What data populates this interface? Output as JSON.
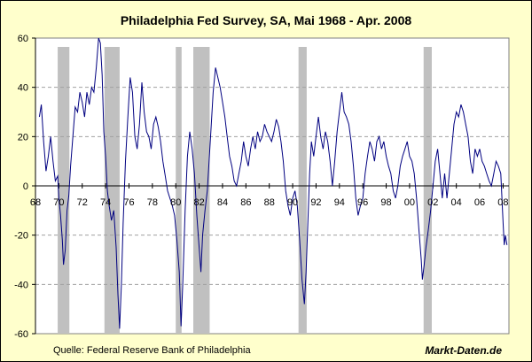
{
  "chart_data": {
    "type": "line",
    "title": "Philadelphia Fed Survey, SA, Mai 1968 - Apr. 2008",
    "xlabel": "",
    "ylabel": "",
    "xlim": [
      1968.0,
      2008.5
    ],
    "ylim": [
      -60,
      60
    ],
    "y_ticks": [
      60,
      40,
      20,
      0,
      -20,
      -40,
      -60
    ],
    "x_ticks": [
      {
        "year": 1968,
        "label": "68"
      },
      {
        "year": 1970,
        "label": "70"
      },
      {
        "year": 1972,
        "label": "72"
      },
      {
        "year": 1974,
        "label": "74"
      },
      {
        "year": 1976,
        "label": "76"
      },
      {
        "year": 1978,
        "label": "78"
      },
      {
        "year": 1980,
        "label": "80"
      },
      {
        "year": 1982,
        "label": "82"
      },
      {
        "year": 1984,
        "label": "84"
      },
      {
        "year": 1986,
        "label": "86"
      },
      {
        "year": 1988,
        "label": "88"
      },
      {
        "year": 1990,
        "label": "90"
      },
      {
        "year": 1992,
        "label": "92"
      },
      {
        "year": 1994,
        "label": "94"
      },
      {
        "year": 1996,
        "label": "96"
      },
      {
        "year": 1998,
        "label": "98"
      },
      {
        "year": 2000,
        "label": "00"
      },
      {
        "year": 2002,
        "label": "02"
      },
      {
        "year": 2004,
        "label": "04"
      },
      {
        "year": 2006,
        "label": "06"
      },
      {
        "year": 2008,
        "label": "08"
      }
    ],
    "grid": "horizontal dashed",
    "recessions": [
      {
        "start": 1969.9,
        "end": 1970.9
      },
      {
        "start": 1973.9,
        "end": 1975.2
      },
      {
        "start": 1980.0,
        "end": 1980.5
      },
      {
        "start": 1981.5,
        "end": 1982.9
      },
      {
        "start": 1990.5,
        "end": 1991.2
      },
      {
        "start": 2001.2,
        "end": 2001.9
      }
    ],
    "series": [
      {
        "name": "Philadelphia Fed Survey",
        "color": "#000080",
        "points": [
          [
            1968.33,
            28
          ],
          [
            1968.5,
            33
          ],
          [
            1968.7,
            18
          ],
          [
            1968.9,
            6
          ],
          [
            1969.1,
            12
          ],
          [
            1969.3,
            20
          ],
          [
            1969.5,
            10
          ],
          [
            1969.7,
            2
          ],
          [
            1969.9,
            4
          ],
          [
            1970.0,
            -5
          ],
          [
            1970.15,
            -12
          ],
          [
            1970.3,
            -22
          ],
          [
            1970.4,
            -32
          ],
          [
            1970.55,
            -26
          ],
          [
            1970.7,
            -10
          ],
          [
            1970.85,
            -4
          ],
          [
            1971.0,
            8
          ],
          [
            1971.2,
            20
          ],
          [
            1971.4,
            32
          ],
          [
            1971.6,
            30
          ],
          [
            1971.8,
            38
          ],
          [
            1972.0,
            34
          ],
          [
            1972.2,
            28
          ],
          [
            1972.4,
            38
          ],
          [
            1972.6,
            33
          ],
          [
            1972.8,
            40
          ],
          [
            1973.0,
            38
          ],
          [
            1973.2,
            48
          ],
          [
            1973.4,
            60
          ],
          [
            1973.55,
            58
          ],
          [
            1973.7,
            45
          ],
          [
            1973.85,
            22
          ],
          [
            1974.0,
            12
          ],
          [
            1974.15,
            -2
          ],
          [
            1974.3,
            -8
          ],
          [
            1974.5,
            -14
          ],
          [
            1974.7,
            -10
          ],
          [
            1974.9,
            -25
          ],
          [
            1975.05,
            -44
          ],
          [
            1975.2,
            -58
          ],
          [
            1975.35,
            -40
          ],
          [
            1975.5,
            -15
          ],
          [
            1975.7,
            10
          ],
          [
            1975.9,
            28
          ],
          [
            1976.1,
            44
          ],
          [
            1976.3,
            38
          ],
          [
            1976.5,
            20
          ],
          [
            1976.7,
            15
          ],
          [
            1976.9,
            25
          ],
          [
            1977.1,
            42
          ],
          [
            1977.3,
            30
          ],
          [
            1977.5,
            22
          ],
          [
            1977.7,
            20
          ],
          [
            1977.9,
            15
          ],
          [
            1978.1,
            25
          ],
          [
            1978.3,
            28
          ],
          [
            1978.5,
            24
          ],
          [
            1978.7,
            18
          ],
          [
            1978.9,
            10
          ],
          [
            1979.1,
            4
          ],
          [
            1979.3,
            -2
          ],
          [
            1979.5,
            -5
          ],
          [
            1979.7,
            -8
          ],
          [
            1979.9,
            -12
          ],
          [
            1980.1,
            -22
          ],
          [
            1980.3,
            -35
          ],
          [
            1980.45,
            -57
          ],
          [
            1980.6,
            -40
          ],
          [
            1980.8,
            -10
          ],
          [
            1981.0,
            12
          ],
          [
            1981.2,
            22
          ],
          [
            1981.4,
            15
          ],
          [
            1981.6,
            5
          ],
          [
            1981.8,
            -12
          ],
          [
            1982.0,
            -25
          ],
          [
            1982.15,
            -35
          ],
          [
            1982.3,
            -20
          ],
          [
            1982.5,
            -10
          ],
          [
            1982.7,
            -2
          ],
          [
            1982.85,
            10
          ],
          [
            1983.0,
            22
          ],
          [
            1983.2,
            38
          ],
          [
            1983.4,
            48
          ],
          [
            1983.6,
            44
          ],
          [
            1983.8,
            40
          ],
          [
            1984.0,
            34
          ],
          [
            1984.2,
            28
          ],
          [
            1984.4,
            20
          ],
          [
            1984.6,
            12
          ],
          [
            1984.8,
            8
          ],
          [
            1985.0,
            2
          ],
          [
            1985.2,
            0
          ],
          [
            1985.4,
            5
          ],
          [
            1985.6,
            10
          ],
          [
            1985.8,
            18
          ],
          [
            1986.0,
            12
          ],
          [
            1986.2,
            8
          ],
          [
            1986.4,
            15
          ],
          [
            1986.6,
            20
          ],
          [
            1986.8,
            15
          ],
          [
            1987.0,
            22
          ],
          [
            1987.2,
            18
          ],
          [
            1987.4,
            20
          ],
          [
            1987.6,
            25
          ],
          [
            1987.8,
            22
          ],
          [
            1988.0,
            20
          ],
          [
            1988.2,
            18
          ],
          [
            1988.4,
            22
          ],
          [
            1988.6,
            27
          ],
          [
            1988.8,
            24
          ],
          [
            1989.0,
            18
          ],
          [
            1989.2,
            10
          ],
          [
            1989.4,
            -2
          ],
          [
            1989.6,
            -8
          ],
          [
            1989.8,
            -12
          ],
          [
            1990.0,
            -5
          ],
          [
            1990.2,
            -2
          ],
          [
            1990.4,
            -8
          ],
          [
            1990.6,
            -22
          ],
          [
            1990.8,
            -38
          ],
          [
            1991.0,
            -48
          ],
          [
            1991.15,
            -35
          ],
          [
            1991.3,
            -15
          ],
          [
            1991.45,
            5
          ],
          [
            1991.6,
            18
          ],
          [
            1991.8,
            12
          ],
          [
            1992.0,
            20
          ],
          [
            1992.2,
            28
          ],
          [
            1992.4,
            20
          ],
          [
            1992.6,
            15
          ],
          [
            1992.8,
            22
          ],
          [
            1993.0,
            18
          ],
          [
            1993.2,
            10
          ],
          [
            1993.4,
            0
          ],
          [
            1993.6,
            10
          ],
          [
            1993.8,
            22
          ],
          [
            1994.0,
            30
          ],
          [
            1994.2,
            38
          ],
          [
            1994.4,
            30
          ],
          [
            1994.6,
            28
          ],
          [
            1994.8,
            25
          ],
          [
            1995.0,
            18
          ],
          [
            1995.2,
            8
          ],
          [
            1995.4,
            -5
          ],
          [
            1995.6,
            -12
          ],
          [
            1995.8,
            -8
          ],
          [
            1996.0,
            -5
          ],
          [
            1996.2,
            5
          ],
          [
            1996.4,
            12
          ],
          [
            1996.6,
            18
          ],
          [
            1996.8,
            15
          ],
          [
            1997.0,
            10
          ],
          [
            1997.2,
            18
          ],
          [
            1997.4,
            20
          ],
          [
            1997.6,
            15
          ],
          [
            1997.8,
            18
          ],
          [
            1998.0,
            12
          ],
          [
            1998.2,
            8
          ],
          [
            1998.4,
            5
          ],
          [
            1998.6,
            -2
          ],
          [
            1998.8,
            -5
          ],
          [
            1999.0,
            0
          ],
          [
            1999.2,
            8
          ],
          [
            1999.4,
            12
          ],
          [
            1999.6,
            15
          ],
          [
            1999.8,
            18
          ],
          [
            2000.0,
            12
          ],
          [
            2000.2,
            10
          ],
          [
            2000.4,
            5
          ],
          [
            2000.6,
            -5
          ],
          [
            2000.8,
            -18
          ],
          [
            2001.0,
            -30
          ],
          [
            2001.1,
            -38
          ],
          [
            2001.25,
            -32
          ],
          [
            2001.4,
            -25
          ],
          [
            2001.6,
            -18
          ],
          [
            2001.8,
            -10
          ],
          [
            2002.0,
            0
          ],
          [
            2002.2,
            10
          ],
          [
            2002.4,
            15
          ],
          [
            2002.6,
            5
          ],
          [
            2002.8,
            -5
          ],
          [
            2003.0,
            5
          ],
          [
            2003.2,
            -5
          ],
          [
            2003.4,
            5
          ],
          [
            2003.6,
            15
          ],
          [
            2003.8,
            25
          ],
          [
            2004.0,
            30
          ],
          [
            2004.2,
            28
          ],
          [
            2004.4,
            33
          ],
          [
            2004.6,
            30
          ],
          [
            2004.8,
            25
          ],
          [
            2005.0,
            20
          ],
          [
            2005.2,
            10
          ],
          [
            2005.4,
            5
          ],
          [
            2005.6,
            15
          ],
          [
            2005.8,
            12
          ],
          [
            2006.0,
            15
          ],
          [
            2006.2,
            10
          ],
          [
            2006.4,
            8
          ],
          [
            2006.6,
            5
          ],
          [
            2006.8,
            2
          ],
          [
            2007.0,
            0
          ],
          [
            2007.2,
            5
          ],
          [
            2007.4,
            10
          ],
          [
            2007.6,
            8
          ],
          [
            2007.8,
            5
          ],
          [
            2008.0,
            -15
          ],
          [
            2008.1,
            -24
          ],
          [
            2008.2,
            -20
          ],
          [
            2008.33,
            -24
          ]
        ]
      }
    ]
  },
  "footer": {
    "source": "Quelle: Federal Reserve Bank of Philadelphia",
    "brand": "Markt-Daten.de"
  }
}
